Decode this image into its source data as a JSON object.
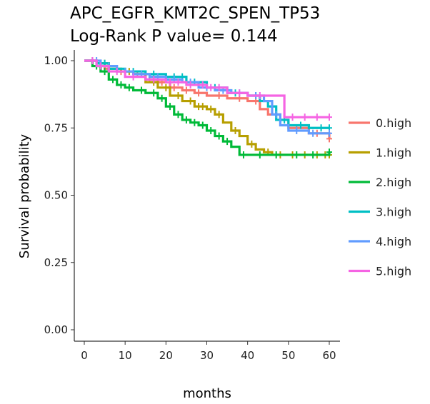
{
  "chart_data": {
    "type": "line",
    "title": "APC_EGFR_KMT2C_SPEN_TP53",
    "subtitle": "Log-Rank P value= 0.144",
    "xlabel": "months",
    "ylabel": "Survival probability",
    "xlim": [
      0,
      60
    ],
    "ylim": [
      0,
      1
    ],
    "x_ticks": [
      "0",
      "10",
      "20",
      "30",
      "40",
      "50",
      "60"
    ],
    "y_ticks": [
      "0.00",
      "0.25",
      "0.50",
      "0.75",
      "1.00"
    ],
    "grid": false,
    "legend_position": "right",
    "series": [
      {
        "name": "0.high",
        "color": "#F8766D",
        "x": [
          0,
          3,
          5,
          8,
          12,
          15,
          18,
          21,
          24,
          27,
          30,
          35,
          40,
          43,
          45,
          48,
          50,
          55,
          60
        ],
        "y": [
          1.0,
          0.99,
          0.97,
          0.96,
          0.95,
          0.93,
          0.92,
          0.9,
          0.89,
          0.88,
          0.87,
          0.86,
          0.85,
          0.82,
          0.8,
          0.78,
          0.75,
          0.73,
          0.71
        ],
        "censor_x": [
          2,
          4,
          6,
          9,
          13,
          16,
          19,
          22,
          25,
          28,
          33,
          38,
          42,
          47,
          52,
          57,
          60
        ]
      },
      {
        "name": "1.high",
        "color": "#B79F00",
        "x": [
          0,
          3,
          6,
          9,
          12,
          15,
          18,
          21,
          24,
          27,
          30,
          32,
          34,
          36,
          38,
          40,
          42,
          44,
          46,
          50,
          55,
          60
        ],
        "y": [
          1.0,
          0.99,
          0.97,
          0.96,
          0.95,
          0.92,
          0.9,
          0.87,
          0.85,
          0.83,
          0.82,
          0.8,
          0.77,
          0.74,
          0.72,
          0.69,
          0.67,
          0.66,
          0.65,
          0.65,
          0.65,
          0.65
        ],
        "censor_x": [
          2,
          5,
          8,
          11,
          14,
          17,
          20,
          23,
          26,
          28,
          29,
          31,
          33,
          37,
          41,
          45,
          48,
          51,
          54,
          57,
          59,
          60
        ]
      },
      {
        "name": "2.high",
        "color": "#00BA38",
        "x": [
          0,
          2,
          4,
          6,
          8,
          10,
          12,
          15,
          18,
          20,
          22,
          24,
          26,
          28,
          30,
          32,
          34,
          36,
          38,
          42,
          50,
          60
        ],
        "y": [
          1.0,
          0.98,
          0.96,
          0.93,
          0.91,
          0.9,
          0.89,
          0.88,
          0.86,
          0.83,
          0.8,
          0.78,
          0.77,
          0.76,
          0.74,
          0.72,
          0.7,
          0.68,
          0.65,
          0.65,
          0.65,
          0.66
        ],
        "censor_x": [
          3,
          5,
          7,
          9,
          11,
          14,
          17,
          19,
          21,
          23,
          25,
          27,
          29,
          31,
          33,
          35,
          39,
          43,
          47,
          52,
          56,
          60
        ]
      },
      {
        "name": "3.high",
        "color": "#00BFC4",
        "x": [
          0,
          3,
          6,
          10,
          15,
          20,
          25,
          30,
          35,
          40,
          43,
          45,
          47,
          50,
          55,
          60
        ],
        "y": [
          1.0,
          0.99,
          0.97,
          0.96,
          0.95,
          0.94,
          0.92,
          0.9,
          0.88,
          0.87,
          0.85,
          0.83,
          0.78,
          0.76,
          0.75,
          0.75
        ],
        "censor_x": [
          2,
          5,
          8,
          12,
          17,
          22,
          24,
          27,
          32,
          37,
          42,
          46,
          49,
          53,
          58,
          60
        ]
      },
      {
        "name": "4.high",
        "color": "#619CFF",
        "x": [
          0,
          4,
          8,
          12,
          16,
          20,
          24,
          28,
          32,
          36,
          40,
          44,
          46,
          48,
          50,
          55,
          60
        ],
        "y": [
          1.0,
          0.98,
          0.96,
          0.95,
          0.94,
          0.93,
          0.92,
          0.9,
          0.89,
          0.88,
          0.87,
          0.85,
          0.8,
          0.76,
          0.74,
          0.73,
          0.73
        ],
        "censor_x": [
          3,
          6,
          10,
          14,
          18,
          22,
          26,
          30,
          34,
          38,
          42,
          47,
          52,
          56,
          60
        ]
      },
      {
        "name": "5.high",
        "color": "#F564E3",
        "x": [
          0,
          3,
          6,
          10,
          15,
          20,
          25,
          30,
          35,
          40,
          45,
          48,
          49,
          52,
          55,
          60
        ],
        "y": [
          1.0,
          0.98,
          0.96,
          0.94,
          0.93,
          0.92,
          0.91,
          0.9,
          0.88,
          0.87,
          0.87,
          0.87,
          0.79,
          0.79,
          0.79,
          0.79
        ],
        "censor_x": [
          2,
          4,
          8,
          12,
          17,
          21,
          23,
          26,
          29,
          31,
          33,
          38,
          43,
          51,
          54,
          57,
          60
        ]
      }
    ]
  }
}
